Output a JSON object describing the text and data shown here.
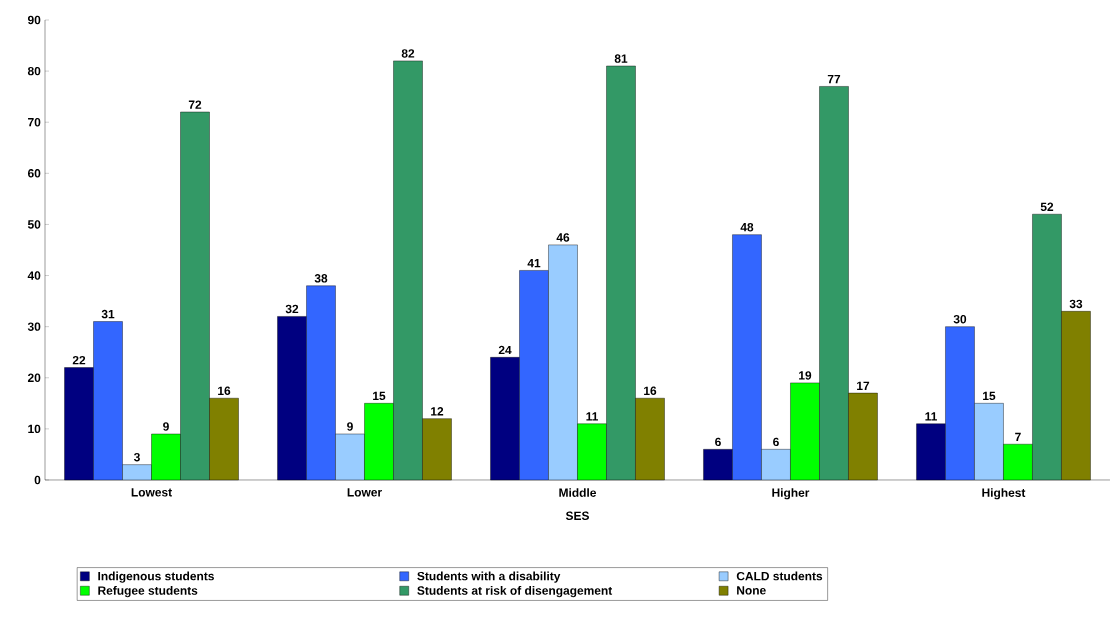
{
  "chart_data": {
    "type": "bar",
    "xlabel": "SES",
    "categories": [
      "Lowest",
      "Lower",
      "Middle",
      "Higher",
      "Highest"
    ],
    "series": [
      {
        "name": "Indigenous students",
        "color": "#000080",
        "values": [
          22,
          32,
          24,
          6,
          11
        ]
      },
      {
        "name": "Students with a disability",
        "color": "#3366ff",
        "values": [
          31,
          38,
          41,
          48,
          30
        ]
      },
      {
        "name": "CALD students",
        "color": "#99ccff",
        "values": [
          3,
          9,
          46,
          6,
          15
        ]
      },
      {
        "name": "Refugee students",
        "color": "#00ff00",
        "values": [
          9,
          15,
          11,
          19,
          7
        ]
      },
      {
        "name": "Students at risk of disengagement",
        "color": "#339966",
        "values": [
          72,
          82,
          81,
          77,
          52
        ]
      },
      {
        "name": "None",
        "color": "#808000",
        "values": [
          16,
          12,
          16,
          17,
          33
        ]
      }
    ],
    "ylim": [
      0,
      90
    ],
    "yticks": [
      0,
      10,
      20,
      30,
      40,
      50,
      60,
      70,
      80,
      90
    ],
    "data_labels": true,
    "legend": "bottom",
    "grid": false
  }
}
